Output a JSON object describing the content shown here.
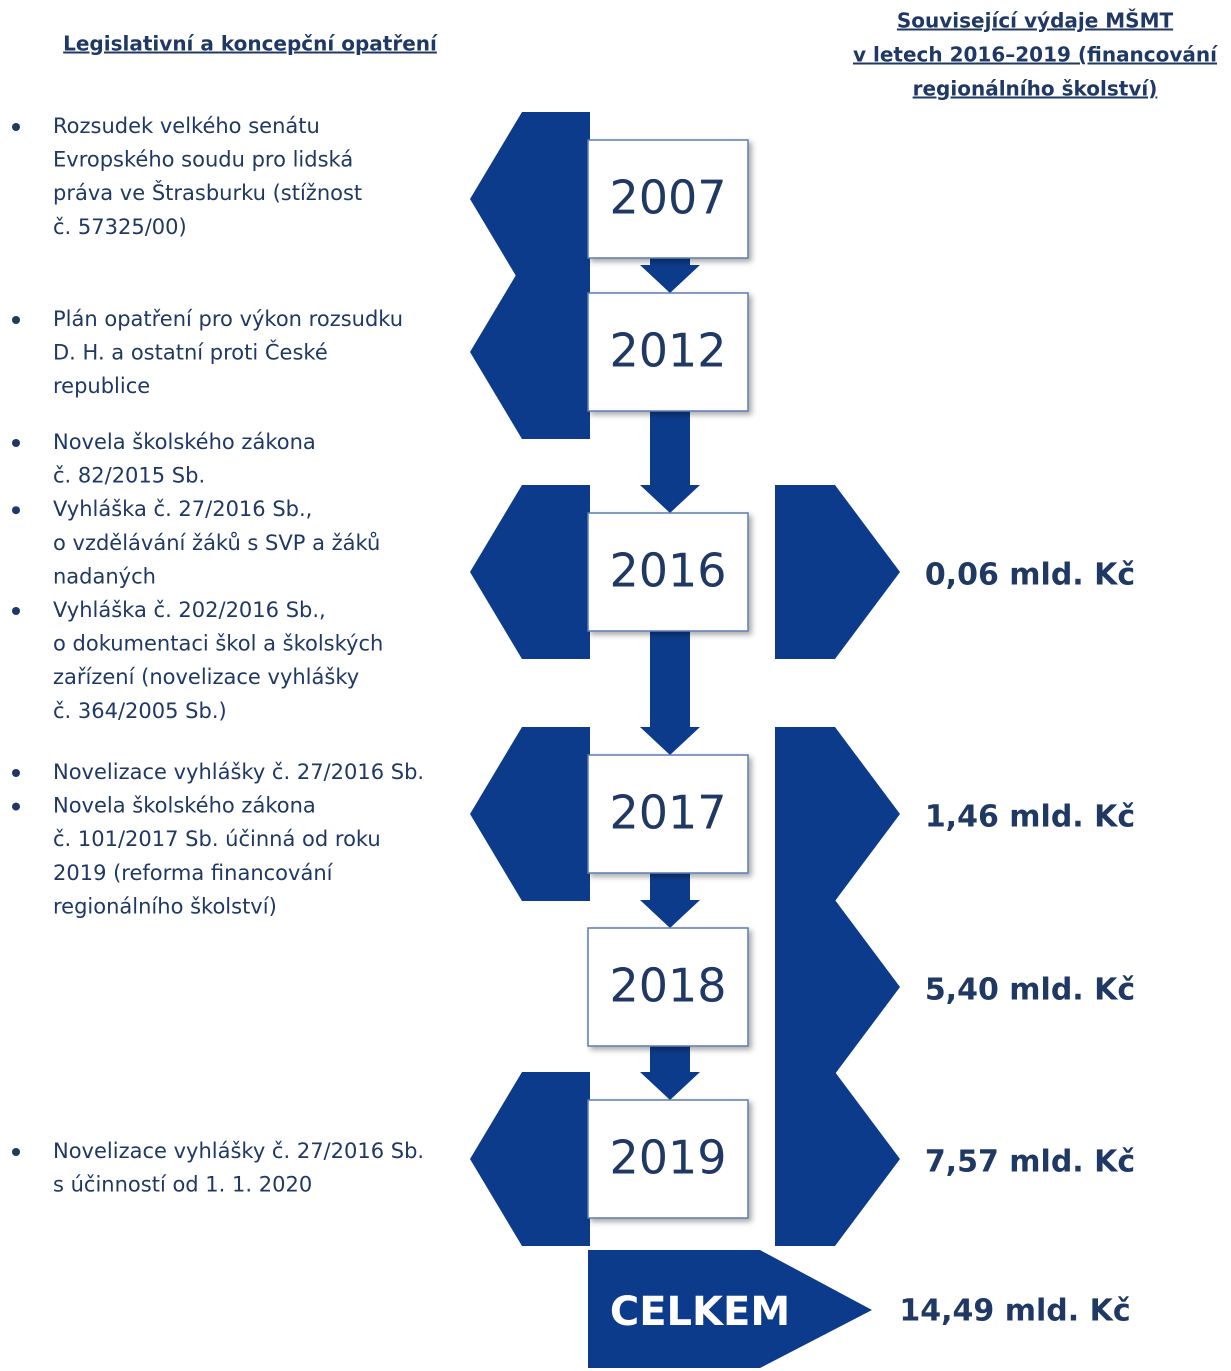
{
  "header": {
    "left": "Legislativní a koncepční opatření",
    "right": [
      "Související výdaje MŠMT",
      "v letech 2016–2019 (financování",
      "regionálního školství)"
    ]
  },
  "timeline": [
    {
      "year": "2007",
      "left": [
        [
          "Rozsudek velkého senátu",
          "Evropského soudu pro lidská",
          "práva ve Štrasburku (stížnost",
          "č. 57325/00)"
        ]
      ]
    },
    {
      "year": "2012",
      "left": [
        [
          "Plán opatření pro výkon rozsudku",
          "D. H. a ostatní proti České",
          "republice"
        ]
      ]
    },
    {
      "year": "2016",
      "left": [
        [
          "Novela školského zákona",
          "č. 82/2015 Sb."
        ],
        [
          "Vyhláška č. 27/2016 Sb.,",
          "o vzdělávání žáků s SVP a žáků",
          "nadaných"
        ],
        [
          "Vyhláška č. 202/2016 Sb.,",
          "o dokumentaci škol a školských",
          "zařízení (novelizace vyhlášky",
          "č. 364/2005 Sb.)"
        ]
      ],
      "amount": "0,06 mld. Kč"
    },
    {
      "year": "2017",
      "left": [
        [
          "Novelizace vyhlášky č. 27/2016 Sb."
        ],
        [
          "Novela školského zákona",
          "č. 101/2017 Sb. účinná od roku",
          "2019 (reforma financování",
          "regionálního školství)"
        ]
      ],
      "amount": "1,46 mld. Kč"
    },
    {
      "year": "2018",
      "amount": "5,40 mld. Kč"
    },
    {
      "year": "2019",
      "left": [
        [
          "Novelizace vyhlášky č. 27/2016 Sb.",
          "s účinností od 1. 1. 2020"
        ]
      ],
      "amount": "7,57 mld. Kč"
    }
  ],
  "total": {
    "label": "CELKEM",
    "amount": "14,49 mld. Kč"
  }
}
